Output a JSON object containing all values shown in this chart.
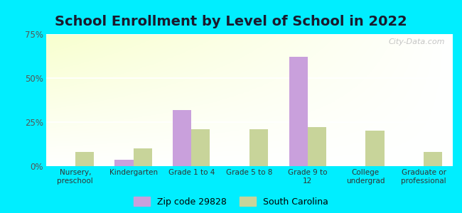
{
  "title": "School Enrollment by Level of School in 2022",
  "categories": [
    "Nursery,\npreschool",
    "Kindergarten",
    "Grade 1 to 4",
    "Grade 5 to 8",
    "Grade 9 to\n12",
    "College\nundergrad",
    "Graduate or\nprofessional"
  ],
  "zip_values": [
    0.0,
    3.5,
    32.0,
    0.0,
    62.0,
    0.0,
    0.0
  ],
  "sc_values": [
    8.0,
    10.0,
    21.0,
    21.0,
    22.0,
    20.0,
    8.0
  ],
  "zip_color": "#c9a0dc",
  "sc_color": "#c8d49a",
  "ylim": [
    0,
    75
  ],
  "yticks": [
    0,
    25,
    50,
    75
  ],
  "ytick_labels": [
    "0%",
    "25%",
    "50%",
    "75%"
  ],
  "background_color": "#00eeff",
  "title_fontsize": 14,
  "legend_label_zip": "Zip code 29828",
  "legend_label_sc": "South Carolina",
  "watermark": "City-Data.com"
}
